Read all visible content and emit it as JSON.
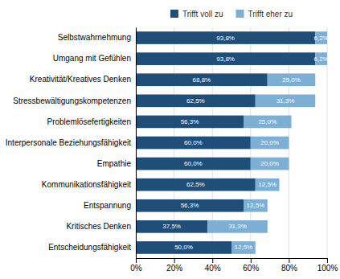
{
  "chart_data": {
    "type": "bar",
    "orientation": "horizontal",
    "stacked": true,
    "categories": [
      "Selbstwahrnehmung",
      "Umgang mit Gefühlen",
      "Kreativität/Kreatives Denken",
      "Stressbewältigungskompetenzen",
      "Problemlösefertigkeiten",
      "Interpersonale Beziehungsfähigkeit",
      "Empathie",
      "Kommunikationsfähigkeit",
      "Entspannung",
      "Kritisches Denken",
      "Entscheidungsfähigkeit"
    ],
    "series": [
      {
        "name": "Trifft voll zu",
        "color": "#1F4E79",
        "values": [
          93.8,
          93.8,
          68.8,
          62.5,
          56.3,
          60.0,
          60.0,
          62.5,
          56.3,
          37.5,
          50.0
        ],
        "value_labels": [
          "93,8%",
          "93,8%",
          "68,8%",
          "62,5%",
          "56,3%",
          "60,0%",
          "60,0%",
          "62,5%",
          "56,3%",
          "37,5%",
          "50,0%"
        ]
      },
      {
        "name": "Trifft eher zu",
        "color": "#7DAFD4",
        "values": [
          6.2,
          6.2,
          25.0,
          31.3,
          25.0,
          20.0,
          20.0,
          12.5,
          12.5,
          31.3,
          12.5
        ],
        "value_labels": [
          "6,2%",
          "6,2%",
          "25,0%",
          "31,3%",
          "25,0%",
          "20,0%",
          "20,0%",
          "12,5%",
          "12,5%",
          "31,3%",
          "12,5%"
        ]
      }
    ],
    "xlim": [
      0,
      100
    ],
    "xticks": [
      {
        "value": 0,
        "label": "0%"
      },
      {
        "value": 20,
        "label": "20%"
      },
      {
        "value": 40,
        "label": "40%"
      },
      {
        "value": 60,
        "label": "60%"
      },
      {
        "value": 80,
        "label": "80%"
      },
      {
        "value": 100,
        "label": "100%"
      }
    ],
    "grid": true,
    "data_labels": true,
    "legend": "top"
  }
}
